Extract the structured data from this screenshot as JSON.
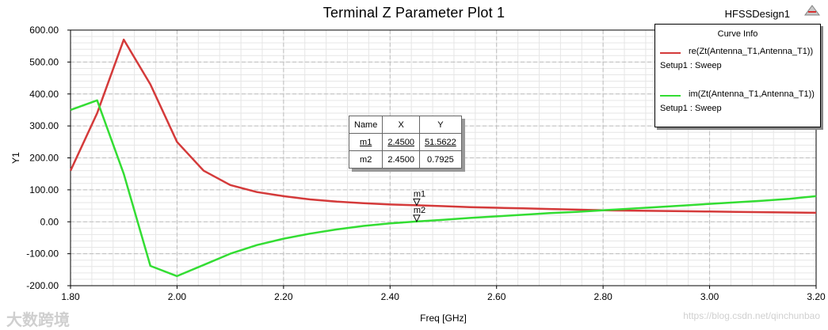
{
  "header": {
    "title": "Terminal Z Parameter Plot 1",
    "design": "HFSSDesign1"
  },
  "chart_data": {
    "type": "line",
    "xlabel": "Freq [GHz]",
    "ylabel": "Y1",
    "xlim": [
      1.8,
      3.2
    ],
    "ylim": [
      -200,
      600
    ],
    "xticks": [
      1.8,
      2.0,
      2.2,
      2.4,
      2.6,
      2.8,
      3.0,
      3.2
    ],
    "xtick_labels": [
      "1.80",
      "2.00",
      "2.20",
      "2.40",
      "2.60",
      "2.80",
      "3.00",
      "3.20"
    ],
    "yticks": [
      -200,
      -100,
      0,
      100,
      200,
      300,
      400,
      500,
      600
    ],
    "ytick_labels": [
      "-200.00",
      "-100.00",
      "0.00",
      "100.00",
      "200.00",
      "300.00",
      "400.00",
      "500.00",
      "600.00"
    ],
    "grid": true,
    "legend_position": "top-right",
    "series": [
      {
        "name": "re(Zt(Antenna_T1,Antenna_T1))",
        "setup": "Setup1 : Sweep",
        "color": "#d43a3a",
        "x": [
          1.8,
          1.85,
          1.9,
          1.95,
          2.0,
          2.05,
          2.1,
          2.15,
          2.2,
          2.25,
          2.3,
          2.35,
          2.4,
          2.45,
          2.5,
          2.55,
          2.6,
          2.65,
          2.7,
          2.75,
          2.8,
          2.85,
          2.9,
          2.95,
          3.0,
          3.05,
          3.1,
          3.15,
          3.2
        ],
        "y": [
          160,
          340,
          570,
          430,
          250,
          160,
          115,
          93,
          80,
          70,
          63,
          58,
          54,
          51.6,
          49,
          46,
          44,
          42,
          40,
          38,
          36,
          35,
          34,
          33,
          32,
          31,
          30,
          29,
          28
        ]
      },
      {
        "name": "im(Zt(Antenna_T1,Antenna_T1))",
        "setup": "Setup1 : Sweep",
        "color": "#33dd33",
        "x": [
          1.8,
          1.85,
          1.9,
          1.95,
          2.0,
          2.05,
          2.1,
          2.15,
          2.2,
          2.25,
          2.3,
          2.35,
          2.4,
          2.45,
          2.5,
          2.55,
          2.6,
          2.65,
          2.7,
          2.75,
          2.8,
          2.85,
          2.9,
          2.95,
          3.0,
          3.05,
          3.1,
          3.15,
          3.2
        ],
        "y": [
          350,
          380,
          150,
          -138,
          -170,
          -135,
          -100,
          -73,
          -53,
          -37,
          -24,
          -13,
          -5,
          0.8,
          6,
          12,
          17,
          22,
          27,
          31,
          36,
          41,
          46,
          51,
          56,
          61,
          66,
          72,
          80
        ]
      }
    ],
    "markers": [
      {
        "name": "m1",
        "x": 2.45,
        "y": 51.5622,
        "x_label": "2.4500",
        "y_label": "51.5622"
      },
      {
        "name": "m2",
        "x": 2.45,
        "y": 0.7925,
        "x_label": "2.4500",
        "y_label": "0.7925"
      }
    ]
  },
  "legend": {
    "title": "Curve Info"
  },
  "marker_table": {
    "headers": [
      "Name",
      "X",
      "Y"
    ]
  },
  "watermark": {
    "left": "大数跨境",
    "right": "https://blog.csdn.net/qinchunbao"
  }
}
